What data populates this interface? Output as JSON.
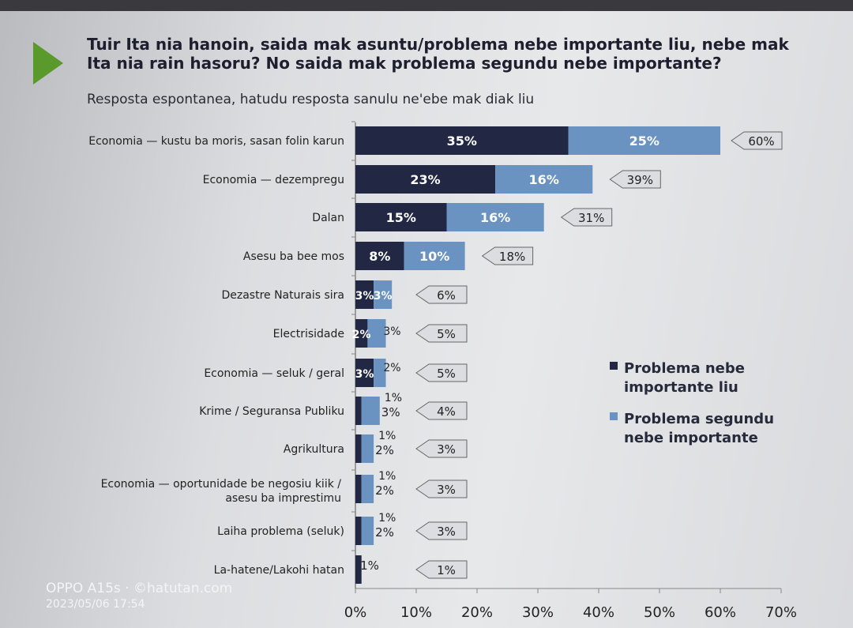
{
  "title": "Tuir Ita nia hanoin, saida mak asuntu/problema  nebe importante liu, nebe mak Ita nia rain hasoru? No saida mak problema segundu nebe importante?",
  "subtitle": "Resposta espontanea, hatudu resposta sanulu ne'ebe mak diak liu",
  "colors": {
    "primary": "#222744",
    "secondary": "#6a93c2",
    "accent": "#5a9a2c",
    "callout": "#dcdde0"
  },
  "watermark": {
    "device": "OPPO A15s · ©hatutan.com",
    "datetime": "2023/05/06 17:54"
  },
  "chart_data": {
    "type": "bar",
    "orientation": "horizontal",
    "stacked": true,
    "categories": [
      "Economia — kustu ba moris, sasan folin karun",
      "Economia — dezempregu",
      "Dalan",
      "Asesu ba bee mos",
      "Dezastre Naturais sira",
      "Electrisidade",
      "Economia — seluk / geral",
      "Krime / Seguransa Publiku",
      "Agrikultura",
      "Economia — oportunidade be negosiu kiik / asesu ba imprestimu",
      "Laiha problema (seluk)",
      "La-hatene/Lakohi hatan"
    ],
    "series": [
      {
        "name": "Problema nebe importante liu",
        "values": [
          35,
          23,
          15,
          8,
          3,
          2,
          3,
          1,
          1,
          1,
          1,
          1
        ]
      },
      {
        "name": "Problema segundu nebe importante",
        "values": [
          25,
          16,
          16,
          10,
          3,
          3,
          2,
          3,
          2,
          2,
          2,
          0
        ]
      }
    ],
    "totals": [
      60,
      39,
      31,
      18,
      6,
      5,
      5,
      4,
      3,
      3,
      3,
      1
    ],
    "x_ticks": [
      "0%",
      "10%",
      "20%",
      "30%",
      "40%",
      "50%",
      "60%",
      "70%"
    ],
    "xlim": [
      0,
      70
    ],
    "legend_position": "right"
  }
}
